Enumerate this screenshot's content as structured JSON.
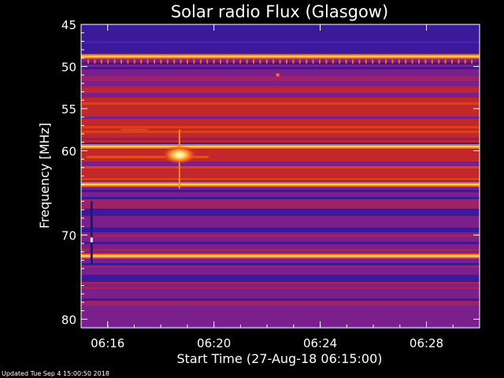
{
  "chart_data": {
    "type": "heatmap",
    "title": "Solar radio Flux (Glasgow)",
    "xlabel": "Start Time (27-Aug-18 06:15:00)",
    "ylabel": "Frequency [MHz]",
    "footer": "Updated Tue Sep  4 15:00:50 2018",
    "x_range_minutes": [
      0,
      15
    ],
    "x_ticks": [
      {
        "label": "06:16",
        "minutes": 1
      },
      {
        "label": "06:20",
        "minutes": 5
      },
      {
        "label": "06:24",
        "minutes": 9
      },
      {
        "label": "06:28",
        "minutes": 13
      }
    ],
    "y_range_mhz": [
      45,
      81
    ],
    "y_ticks": [
      {
        "label": "45",
        "mhz": 45
      },
      {
        "label": "50",
        "mhz": 50
      },
      {
        "label": "55",
        "mhz": 55
      },
      {
        "label": "60",
        "mhz": 60
      },
      {
        "label": "70",
        "mhz": 70
      },
      {
        "label": "80",
        "mhz": 80
      }
    ],
    "colormap": [
      "#3a1a9a",
      "#7a1f8c",
      "#c2282a",
      "#ff6a1a",
      "#ffe060",
      "#ffffff"
    ],
    "bright_bands_mhz": [
      48.8,
      59.5,
      64.0,
      72.5
    ],
    "red_band_ranges_mhz": [
      [
        52.5,
        59.0
      ],
      [
        59.8,
        63.5
      ]
    ],
    "bursts": [
      {
        "minutes": 3.7,
        "mhz": 60.5,
        "intensity": 1.0
      },
      {
        "minutes": 7.4,
        "mhz": 51.0,
        "intensity": 0.6
      }
    ]
  }
}
